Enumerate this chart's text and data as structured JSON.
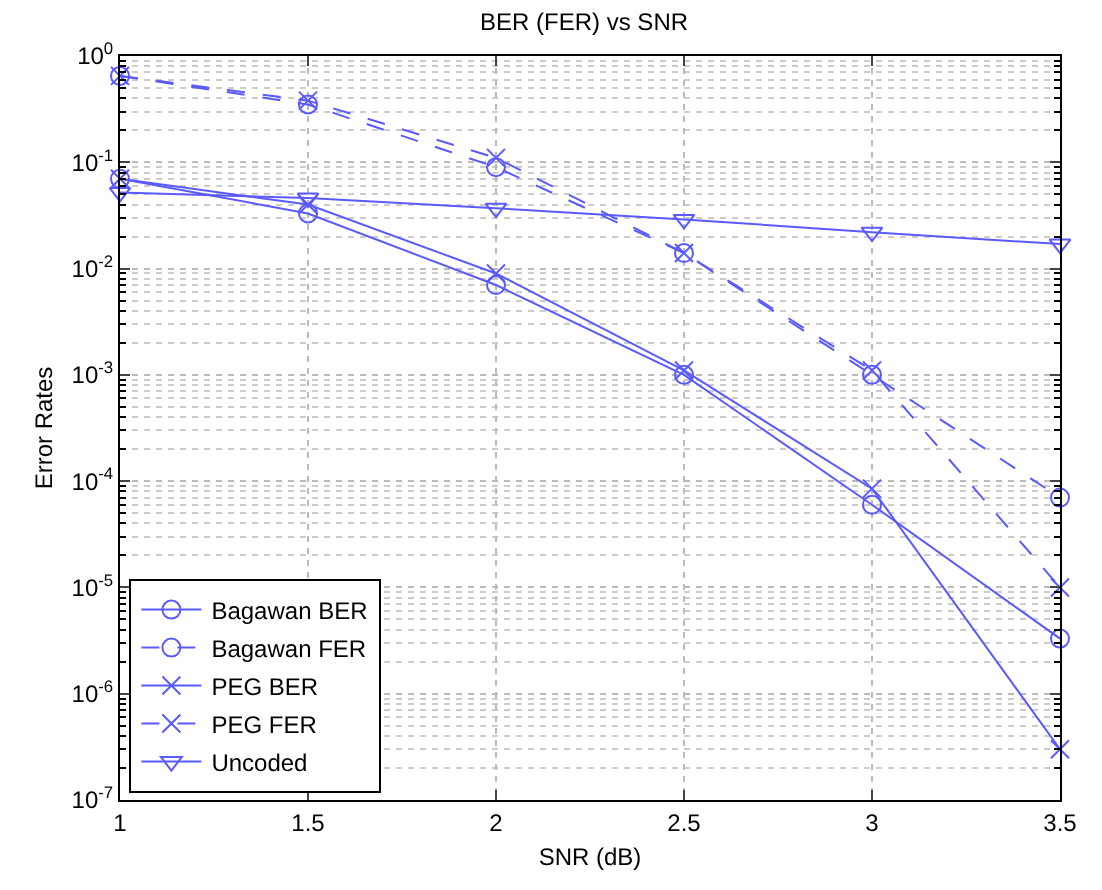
{
  "chart_data": {
    "type": "line",
    "title": "BER (FER) vs SNR",
    "xlabel": "SNR (dB)",
    "ylabel": "Error Rates",
    "log": "y",
    "grid": true,
    "legend": "bottom left",
    "x": [
      1,
      1.5,
      2,
      2.5,
      3,
      3.5
    ],
    "xlim": [
      1,
      3.5
    ],
    "xticks": [
      1,
      1.5,
      2,
      2.5,
      3,
      3.5
    ],
    "ylim": [
      1e-07,
      1
    ],
    "yticks": [
      {
        "value": 1e-07,
        "label": "10$^{-7}$"
      },
      {
        "value": 1e-06,
        "label": "10$^{-6}$"
      },
      {
        "value": 1e-05,
        "label": "10$^{-5}$"
      },
      {
        "value": 0.0001,
        "label": "10$^{-4}$"
      },
      {
        "value": 0.001,
        "label": "10$^{-3}$"
      },
      {
        "value": 0.01,
        "label": "10$^{-2}$"
      },
      {
        "value": 0.1,
        "label": "10$^{-1}$"
      },
      {
        "value": 1,
        "label": "10$^{0}$"
      }
    ],
    "series": [
      {
        "name": "Bagawan BER",
        "color": "#5a5aff",
        "marker": "circle",
        "line_style": "solid",
        "values": [
          0.07,
          0.033,
          0.007,
          0.001,
          6e-05,
          3.3e-06
        ]
      },
      {
        "name": "Bagawan FER",
        "color": "#5a5aff",
        "marker": "circle",
        "line_style": "dashed",
        "values": [
          0.65,
          0.35,
          0.09,
          0.014,
          0.001,
          7e-05
        ]
      },
      {
        "name": "PEG BER",
        "color": "#5a5aff",
        "marker": "cross",
        "line_style": "solid",
        "values": [
          0.07,
          0.04,
          0.009,
          0.0011,
          8.5e-05,
          3e-07
        ]
      },
      {
        "name": "PEG FER",
        "color": "#5a5aff",
        "marker": "cross",
        "line_style": "dashed",
        "values": [
          0.65,
          0.38,
          0.11,
          0.014,
          0.0011,
          1e-05
        ]
      },
      {
        "name": "Uncoded",
        "color": "#5a5aff",
        "marker": "triangle",
        "line_style": "solid",
        "values": [
          0.052,
          0.046,
          0.037,
          0.029,
          0.022,
          0.017
        ]
      }
    ]
  }
}
